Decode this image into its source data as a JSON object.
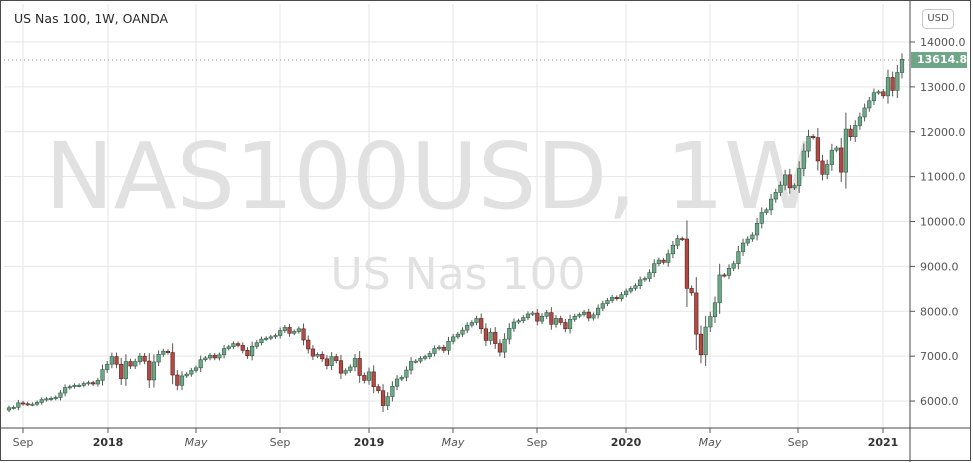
{
  "header": {
    "title": "US Nas 100, 1W, OANDA",
    "currency": "USD"
  },
  "watermark": {
    "symbol": "NAS100USD, 1W",
    "name": "US Nas 100"
  },
  "price_axis": {
    "labels": [
      "14000.0",
      "13000.0",
      "12000.0",
      "11000.0",
      "10000.0",
      "9000.0",
      "8000.0",
      "7000.0",
      "6000.0"
    ],
    "last_price": "13614.8"
  },
  "time_axis": {
    "labels": [
      "Sep",
      "2018",
      "May",
      "Sep",
      "2019",
      "May",
      "Sep",
      "2020",
      "May",
      "Sep",
      "2021"
    ]
  },
  "colors": {
    "up": "#5b9a78",
    "down": "#a8403c",
    "up_fill": "#6fa687",
    "down_fill": "#b04a45",
    "wick": "#555555",
    "grid": "#e6e6e6",
    "last_price_bg": "#6fa687"
  },
  "chart_data": {
    "type": "candlestick",
    "title": "US Nas 100, 1W, OANDA",
    "watermark": "NAS100USD, 1W",
    "xlabel": "",
    "ylabel": "USD",
    "ylim": [
      5500,
      14400
    ],
    "y_ticks": [
      6000,
      7000,
      8000,
      9000,
      10000,
      11000,
      12000,
      13000,
      14000
    ],
    "x_tick_labels": [
      "Sep",
      "2018",
      "May",
      "Sep",
      "2019",
      "May",
      "Sep",
      "2020",
      "May",
      "Sep",
      "2021"
    ],
    "last_price": 13614.8,
    "grid": true,
    "weekly_close_series": [
      5850,
      5860,
      5960,
      5940,
      5930,
      5930,
      5970,
      6030,
      6050,
      6060,
      6080,
      6180,
      6300,
      6320,
      6350,
      6350,
      6390,
      6410,
      6380,
      6460,
      6700,
      6820,
      6990,
      6820,
      6500,
      6880,
      6780,
      6880,
      7000,
      6890,
      6470,
      6870,
      7040,
      7110,
      7080,
      6580,
      6350,
      6560,
      6600,
      6680,
      6740,
      6920,
      6960,
      7020,
      6960,
      7030,
      7170,
      7210,
      7280,
      7240,
      7130,
      7010,
      7220,
      7300,
      7380,
      7400,
      7430,
      7460,
      7570,
      7640,
      7510,
      7550,
      7610,
      7360,
      7160,
      7000,
      7040,
      6940,
      6790,
      6990,
      6900,
      6620,
      6680,
      6760,
      6950,
      6570,
      6460,
      6650,
      6320,
      6230,
      5900,
      6100,
      6330,
      6490,
      6530,
      6690,
      6880,
      6890,
      6950,
      6990,
      7060,
      7170,
      7200,
      7130,
      7330,
      7430,
      7490,
      7580,
      7690,
      7750,
      7840,
      7610,
      7350,
      7530,
      7280,
      7090,
      7380,
      7620,
      7760,
      7790,
      7860,
      7940,
      7960,
      7780,
      7890,
      7970,
      7710,
      7840,
      7750,
      7610,
      7820,
      7890,
      7930,
      7980,
      7850,
      7920,
      8070,
      8170,
      8240,
      8310,
      8280,
      8370,
      8450,
      8510,
      8570,
      8700,
      8730,
      8860,
      9060,
      9140,
      9090,
      9280,
      9470,
      9620,
      9610,
      8510,
      8410,
      7490,
      7030,
      7650,
      7880,
      8190,
      8810,
      8800,
      8960,
      9060,
      9330,
      9520,
      9610,
      9700,
      9960,
      10200,
      10260,
      10500,
      10650,
      10810,
      11040,
      10750,
      10800,
      11180,
      11570,
      11900,
      11870,
      11350,
      11050,
      11270,
      11590,
      11640,
      11100,
      12060,
      11890,
      12140,
      12330,
      12530,
      12690,
      12870,
      12890,
      12800,
      13210,
      12920,
      13320,
      13614.8
    ]
  }
}
